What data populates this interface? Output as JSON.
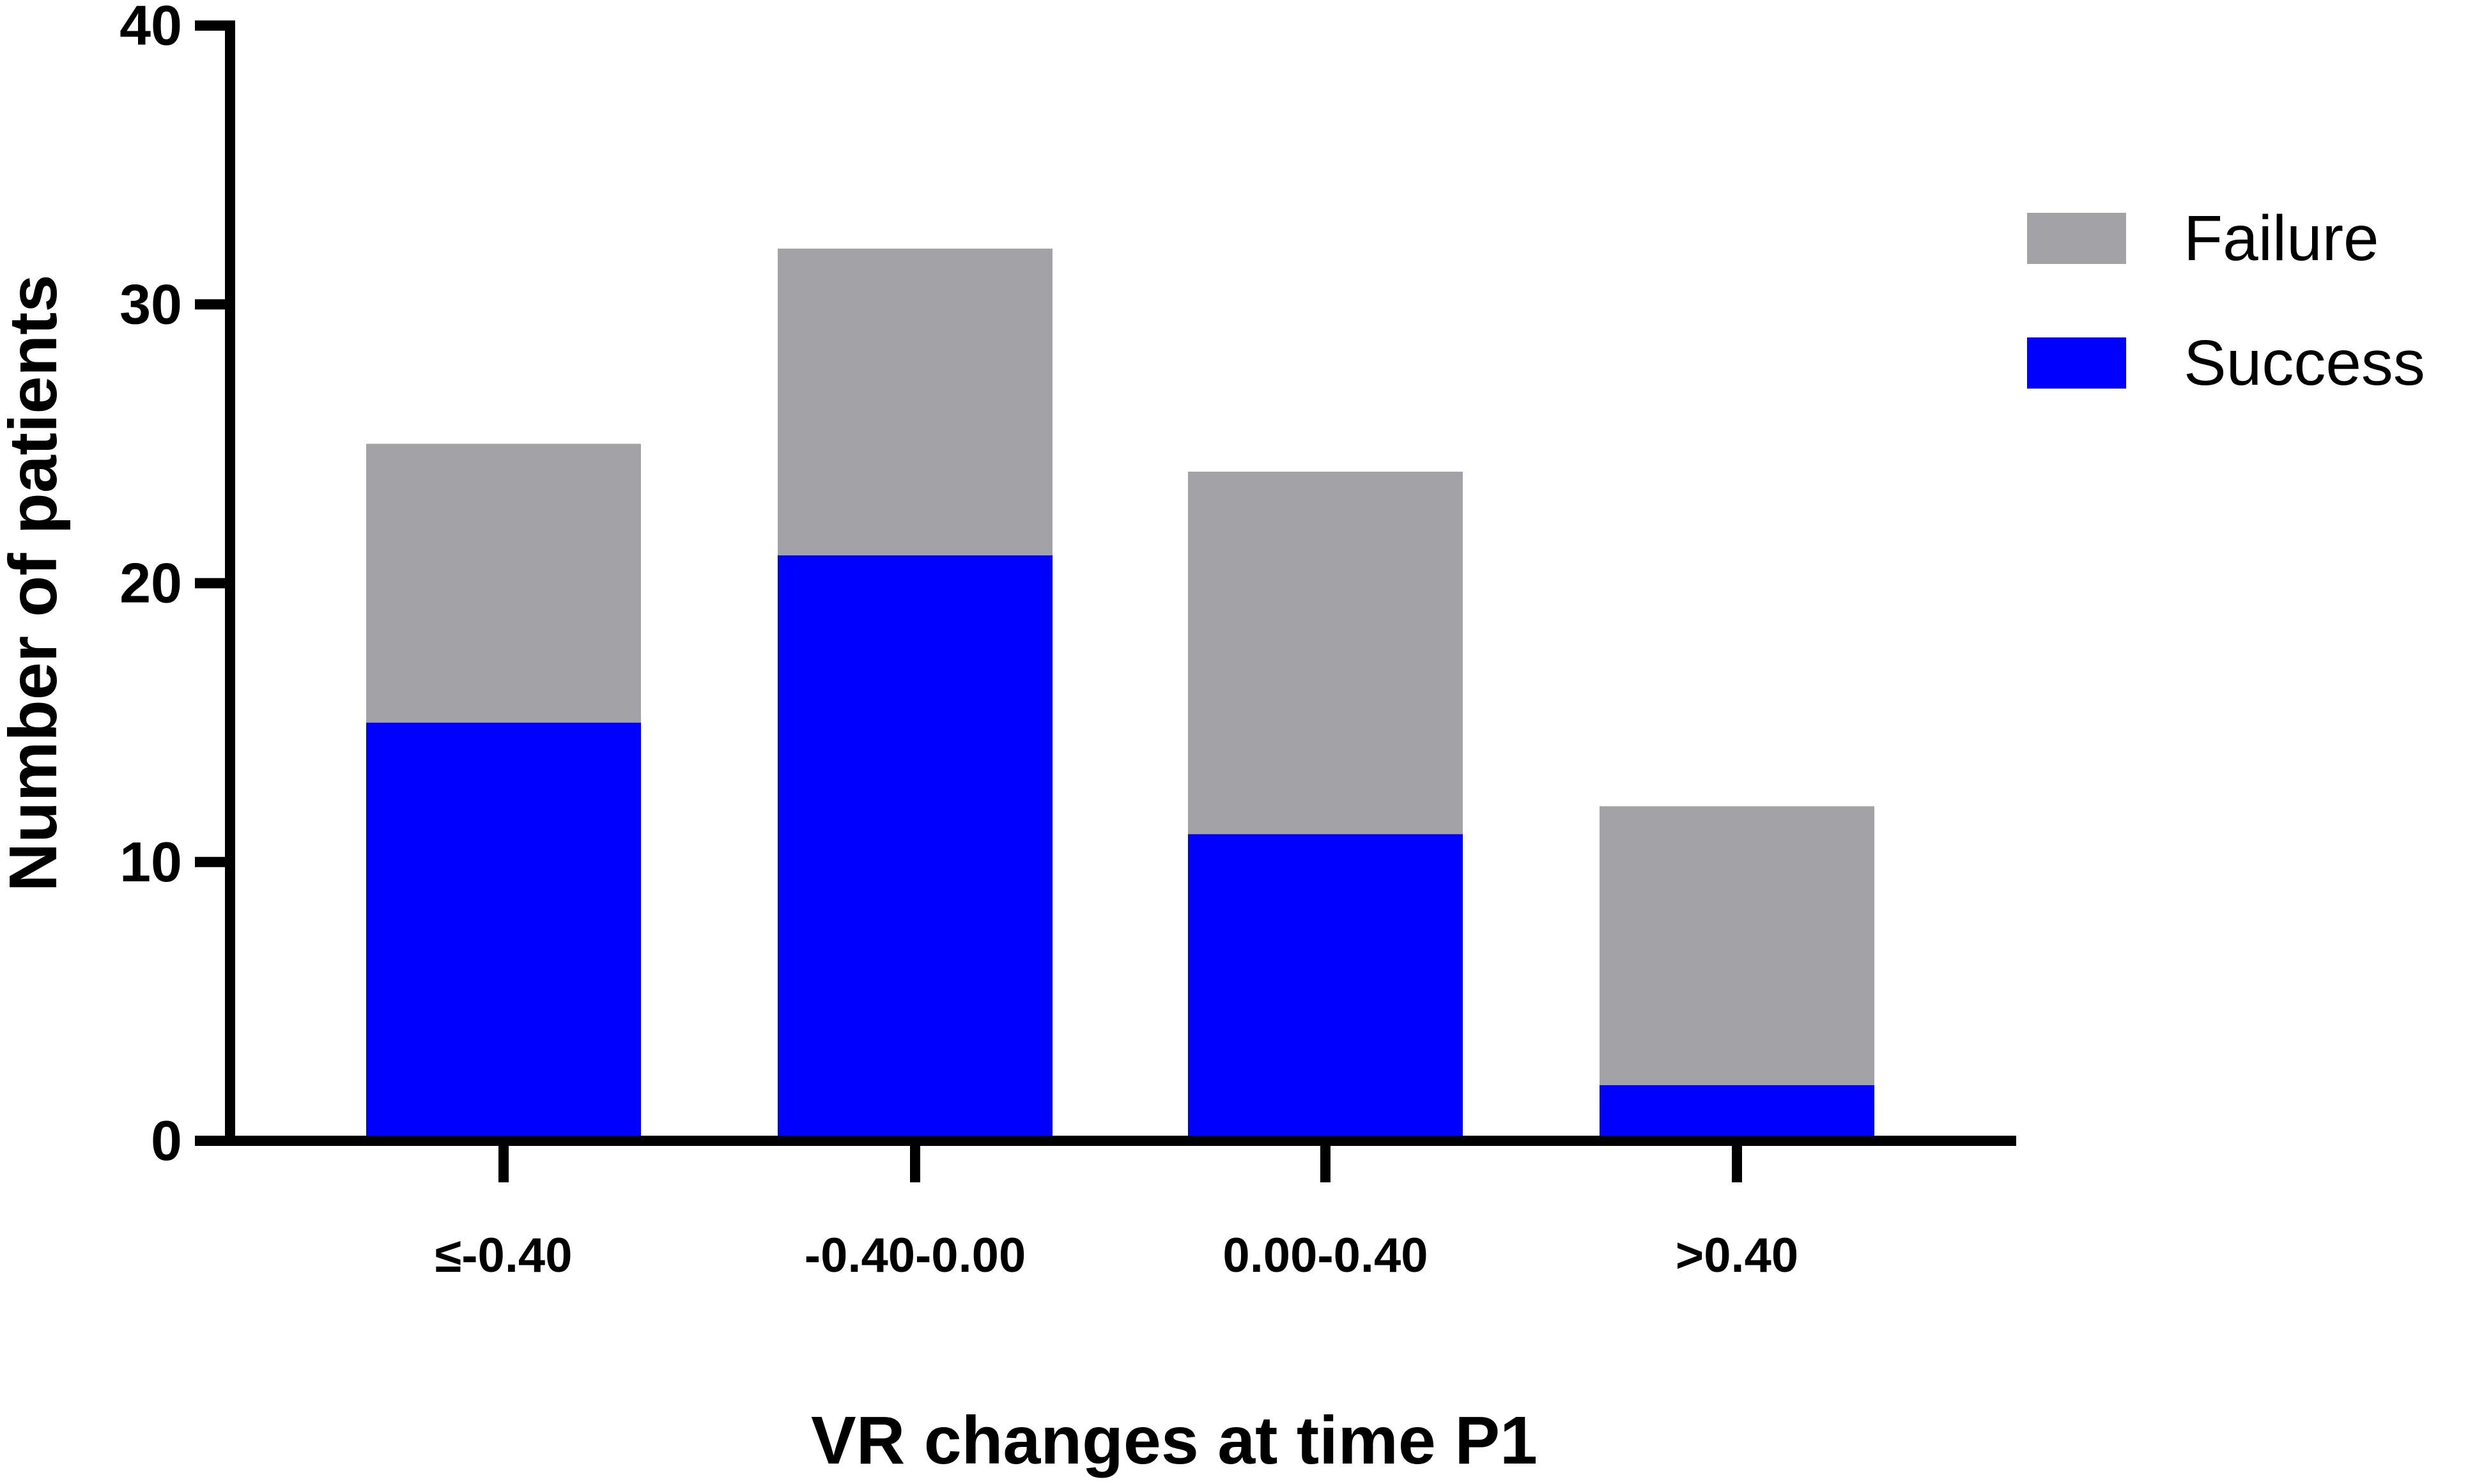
{
  "chart_data": {
    "type": "bar",
    "stacked": true,
    "categories": [
      "≤-0.40",
      "-0.40-0.00",
      "0.00-0.40",
      ">0.40"
    ],
    "series": [
      {
        "name": "Success",
        "values": [
          15,
          21,
          11,
          2
        ],
        "color": "#0000FF"
      },
      {
        "name": "Failure",
        "values": [
          10,
          11,
          13,
          10
        ],
        "color": "#A3A3A7"
      }
    ],
    "legend_order": [
      "Failure",
      "Success"
    ],
    "legend_position": "right",
    "xlabel": "VR changes at time P1",
    "ylabel": "Number of patients",
    "ylim": [
      0,
      40
    ],
    "yticks": [
      0,
      10,
      20,
      30,
      40
    ],
    "grid": false
  },
  "colors": {
    "axis": "#000000",
    "background": "#FFFFFF"
  }
}
